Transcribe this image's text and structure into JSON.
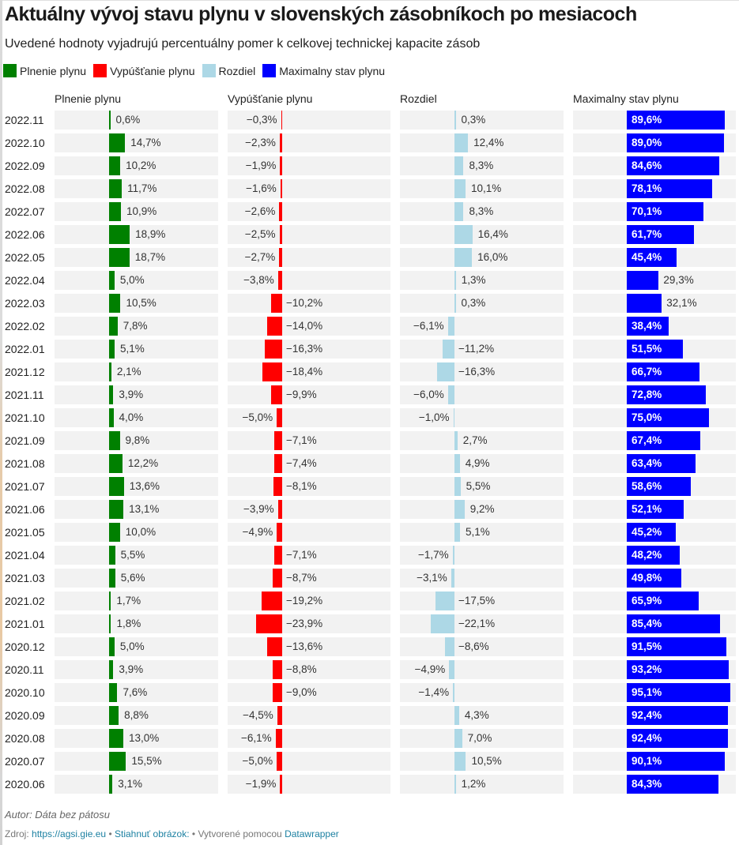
{
  "title": "Aktuálny vývoj stavu plynu v slovenských zásobníkoch po mesiacoch",
  "subtitle": "Uvedené hodnoty vyjadrujú percentuálny pomer k celkovej technickej kapacite zásob",
  "legend": [
    {
      "label": "Plnenie plynu",
      "color": "#008000"
    },
    {
      "label": "Vypúšťanie plynu",
      "color": "#ff0000"
    },
    {
      "label": "Rozdiel",
      "color": "#add8e6"
    },
    {
      "label": "Maximalny stav plynu",
      "color": "#0000ff"
    }
  ],
  "footer": {
    "author": "Autor: Dáta bez pátosu",
    "source_prefix": "Zdroj:",
    "source_link": "https://agsi.gie.eu",
    "separator1": "•",
    "download_link": "Stiahnuť obrázok:",
    "separator2": "•",
    "created_with": "Vytvorené pomocou",
    "tool_link": "Datawrapper"
  },
  "chart_data": {
    "type": "bar",
    "title": "Aktuálny vývoj stavu plynu v slovenských zásobníkoch po mesiacoch",
    "subtitle": "Uvedené hodnoty vyjadrujú percentuálny pomer k celkovej technickej kapacite zásob",
    "unit": "%",
    "categories": [
      "2022.11",
      "2022.10",
      "2022.09",
      "2022.08",
      "2022.07",
      "2022.06",
      "2022.05",
      "2022.04",
      "2022.03",
      "2022.02",
      "2022.01",
      "2021.12",
      "2021.11",
      "2021.10",
      "2021.09",
      "2021.08",
      "2021.07",
      "2021.06",
      "2021.05",
      "2021.04",
      "2021.03",
      "2021.02",
      "2021.01",
      "2020.12",
      "2020.11",
      "2020.10",
      "2020.09",
      "2020.08",
      "2020.07",
      "2020.06"
    ],
    "series": [
      {
        "name": "Plnenie plynu",
        "color": "#008000",
        "values": [
          0.6,
          14.7,
          10.2,
          11.7,
          10.9,
          18.9,
          18.7,
          5.0,
          10.5,
          7.8,
          5.1,
          2.1,
          3.9,
          4.0,
          9.8,
          12.2,
          13.6,
          13.1,
          10.0,
          5.5,
          5.6,
          1.7,
          1.8,
          5.0,
          3.9,
          7.6,
          8.8,
          13.0,
          15.5,
          3.1
        ],
        "labels": [
          "0,6%",
          "14,7%",
          "10,2%",
          "11,7%",
          "10,9%",
          "18,9%",
          "18,7%",
          "5,0%",
          "10,5%",
          "7,8%",
          "5,1%",
          "2,1%",
          "3,9%",
          "4,0%",
          "9,8%",
          "12,2%",
          "13,6%",
          "13,1%",
          "10,0%",
          "5,5%",
          "5,6%",
          "1,7%",
          "1,8%",
          "5,0%",
          "3,9%",
          "7,6%",
          "8,8%",
          "13,0%",
          "15,5%",
          "3,1%"
        ]
      },
      {
        "name": "Vypúšťanie plynu",
        "color": "#ff0000",
        "values": [
          -0.3,
          -2.3,
          -1.9,
          -1.6,
          -2.6,
          -2.5,
          -2.7,
          -3.8,
          -10.2,
          -14.0,
          -16.3,
          -18.4,
          -9.9,
          -5.0,
          -7.1,
          -7.4,
          -8.1,
          -3.9,
          -4.9,
          -7.1,
          -8.7,
          -19.2,
          -23.9,
          -13.6,
          -8.8,
          -9.0,
          -4.5,
          -6.1,
          -5.0,
          -1.9
        ],
        "labels": [
          "−0,3%",
          "−2,3%",
          "−1,9%",
          "−1,6%",
          "−2,6%",
          "−2,5%",
          "−2,7%",
          "−3,8%",
          "−10,2%",
          "−14,0%",
          "−16,3%",
          "−18,4%",
          "−9,9%",
          "−5,0%",
          "−7,1%",
          "−7,4%",
          "−8,1%",
          "−3,9%",
          "−4,9%",
          "−7,1%",
          "−8,7%",
          "−19,2%",
          "−23,9%",
          "−13,6%",
          "−8,8%",
          "−9,0%",
          "−4,5%",
          "−6,1%",
          "−5,0%",
          "−1,9%"
        ]
      },
      {
        "name": "Rozdiel",
        "color": "#add8e6",
        "values": [
          0.3,
          12.4,
          8.3,
          10.1,
          8.3,
          16.4,
          16.0,
          1.3,
          0.3,
          -6.1,
          -11.2,
          -16.3,
          -6.0,
          -1.0,
          2.7,
          4.9,
          5.5,
          9.2,
          5.1,
          -1.7,
          -3.1,
          -17.5,
          -22.1,
          -8.6,
          -4.9,
          -1.4,
          4.3,
          7.0,
          10.5,
          1.2
        ],
        "labels": [
          "0,3%",
          "12,4%",
          "8,3%",
          "10,1%",
          "8,3%",
          "16,4%",
          "16,0%",
          "1,3%",
          "0,3%",
          "−6,1%",
          "−11,2%",
          "−16,3%",
          "−6,0%",
          "−1,0%",
          "2,7%",
          "4,9%",
          "5,5%",
          "9,2%",
          "5,1%",
          "−1,7%",
          "−3,1%",
          "−17,5%",
          "−22,1%",
          "−8,6%",
          "−4,9%",
          "−1,4%",
          "4,3%",
          "7,0%",
          "10,5%",
          "1,2%"
        ]
      },
      {
        "name": "Maximalny stav plynu",
        "color": "#0000ff",
        "values": [
          89.6,
          89.0,
          84.6,
          78.1,
          70.1,
          61.7,
          45.4,
          29.3,
          32.1,
          38.4,
          51.5,
          66.7,
          72.8,
          75.0,
          67.4,
          63.4,
          58.6,
          52.1,
          45.2,
          48.2,
          49.8,
          65.9,
          85.4,
          91.5,
          93.2,
          95.1,
          92.4,
          92.4,
          90.1,
          84.3
        ],
        "labels": [
          "89,6%",
          "89,0%",
          "84,6%",
          "78,1%",
          "70,1%",
          "61,7%",
          "45,4%",
          "29,3%",
          "32,1%",
          "38,4%",
          "51,5%",
          "66,7%",
          "72,8%",
          "75,0%",
          "67,4%",
          "63,4%",
          "58,6%",
          "52,1%",
          "45,2%",
          "48,2%",
          "49,8%",
          "65,9%",
          "85,4%",
          "91,5%",
          "93,2%",
          "95,1%",
          "92,4%",
          "92,4%",
          "90,1%",
          "84,3%"
        ]
      }
    ],
    "column_headers": [
      "Plnenie plynu",
      "Vypúšťanie plynu",
      "Rozdiel",
      "Maximalny stav plynu"
    ],
    "xlabel": "",
    "ylabel": "",
    "grid": false,
    "legend_position": "top-left"
  }
}
